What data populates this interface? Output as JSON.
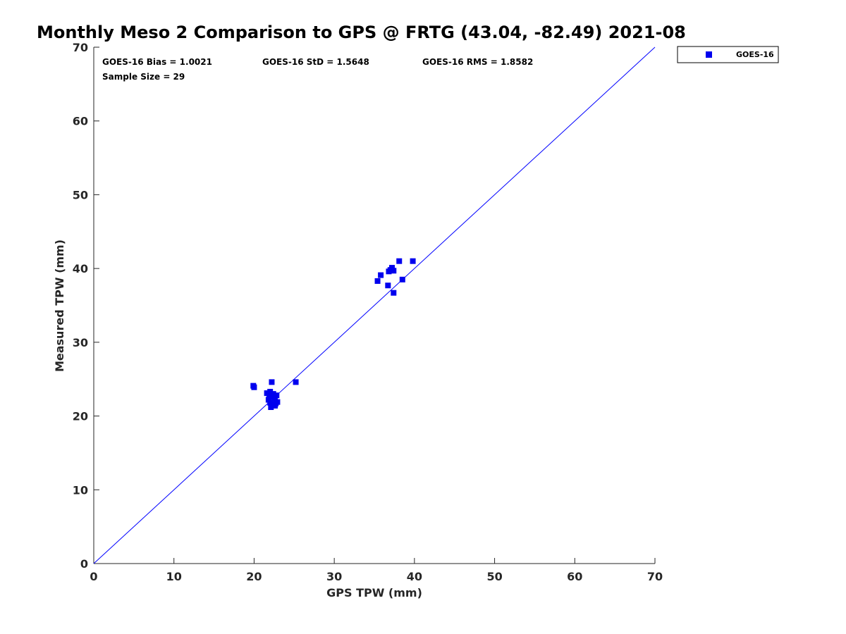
{
  "chart_data": {
    "type": "scatter",
    "title": "Monthly Meso 2 Comparison to GPS @ FRTG (43.04, -82.49) 2021-08",
    "xlabel": "GPS TPW (mm)",
    "ylabel": "Measured TPW (mm)",
    "xlim": [
      0,
      70
    ],
    "ylim": [
      0,
      70
    ],
    "xticks": [
      "0",
      "10",
      "20",
      "30",
      "40",
      "50",
      "60",
      "70"
    ],
    "yticks": [
      "0",
      "10",
      "20",
      "30",
      "40",
      "50",
      "60",
      "70"
    ],
    "grid": false,
    "legend_position": "outside top-right",
    "stats": {
      "bias": "GOES-16 Bias = 1.0021",
      "std": "GOES-16 StD = 1.5648",
      "rms": "GOES-16 RMS = 1.8582",
      "sample": "Sample Size = 29"
    },
    "reference_line": {
      "from": [
        0,
        0
      ],
      "to": [
        70,
        70
      ],
      "color": "#0000ff"
    },
    "series": [
      {
        "name": "GOES-16",
        "color": "#0000ee",
        "marker": "square",
        "points": [
          [
            19.9,
            24.1
          ],
          [
            20.0,
            23.9
          ],
          [
            21.6,
            23.1
          ],
          [
            21.9,
            22.9
          ],
          [
            22.0,
            23.3
          ],
          [
            22.2,
            24.6
          ],
          [
            22.3,
            22.6
          ],
          [
            22.6,
            22.4
          ],
          [
            22.8,
            22.8
          ],
          [
            22.0,
            21.8
          ],
          [
            22.3,
            21.6
          ],
          [
            22.6,
            21.4
          ],
          [
            22.9,
            21.9
          ],
          [
            22.1,
            21.2
          ],
          [
            25.2,
            24.6
          ],
          [
            35.4,
            38.3
          ],
          [
            35.8,
            39.1
          ],
          [
            36.7,
            37.7
          ],
          [
            36.8,
            39.6
          ],
          [
            37.2,
            40.1
          ],
          [
            37.4,
            39.7
          ],
          [
            37.4,
            36.7
          ],
          [
            38.1,
            41.0
          ],
          [
            38.5,
            38.5
          ],
          [
            39.8,
            41.0
          ],
          [
            22.4,
            23.0
          ],
          [
            21.8,
            22.2
          ],
          [
            37.0,
            39.8
          ],
          [
            22.7,
            21.7
          ]
        ]
      }
    ]
  }
}
